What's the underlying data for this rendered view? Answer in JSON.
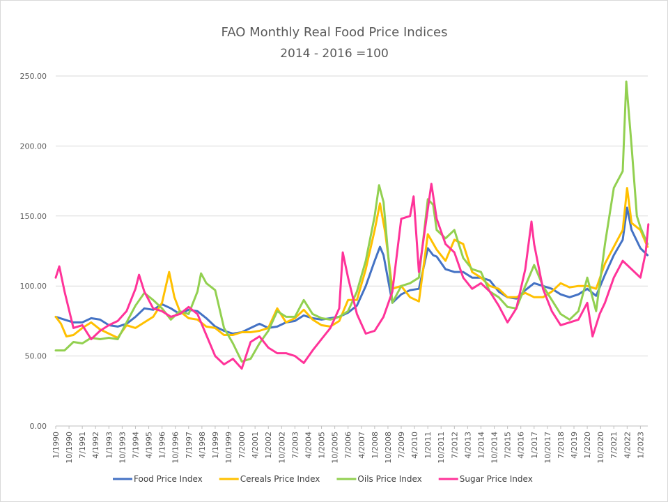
{
  "chart_data": {
    "type": "line",
    "title": "FAO Monthly Real Food Price Indices",
    "subtitle": "2014 - 2016 =100",
    "xlabel": "",
    "ylabel": "",
    "ylim": [
      0,
      250
    ],
    "y_ticks": [
      "0.00",
      "50.00",
      "100.00",
      "150.00",
      "200.00",
      "250.00"
    ],
    "x_tick_labels": [
      "1/1990",
      "10/1990",
      "7/1991",
      "4/1992",
      "1/1993",
      "10/1993",
      "7/1994",
      "4/1995",
      "1/1996",
      "10/1996",
      "7/1997",
      "4/1998",
      "1/1999",
      "10/1999",
      "7/2000",
      "4/2001",
      "1/2002",
      "10/2002",
      "7/2003",
      "4/2004",
      "1/2005",
      "10/2005",
      "7/2006",
      "4/2007",
      "1/2008",
      "10/2008",
      "7/2009",
      "4/2010",
      "1/2011",
      "10/2011",
      "7/2012",
      "4/2013",
      "1/2014",
      "10/2014",
      "7/2015",
      "4/2016",
      "1/2017",
      "10/2017",
      "7/2018",
      "4/2019",
      "1/2020",
      "10/2020",
      "7/2021",
      "4/2022",
      "1/2023"
    ],
    "x_start": "1/1990",
    "x_end": "6/2023",
    "grid": true,
    "legend_position": "bottom",
    "series": [
      {
        "name": "Food Price Index",
        "color": "#4472C4",
        "points": [
          [
            1990.0,
            78
          ],
          [
            1990.5,
            76
          ],
          [
            1991.0,
            74
          ],
          [
            1991.5,
            74
          ],
          [
            1992.0,
            77
          ],
          [
            1992.5,
            76
          ],
          [
            1993.0,
            72
          ],
          [
            1993.5,
            71
          ],
          [
            1994.0,
            73
          ],
          [
            1994.5,
            78
          ],
          [
            1995.0,
            84
          ],
          [
            1995.5,
            83
          ],
          [
            1996.0,
            87
          ],
          [
            1996.5,
            84
          ],
          [
            1997.0,
            80
          ],
          [
            1997.5,
            83
          ],
          [
            1998.0,
            82
          ],
          [
            1998.5,
            77
          ],
          [
            1999.0,
            71
          ],
          [
            1999.5,
            68
          ],
          [
            2000.0,
            66
          ],
          [
            2000.5,
            67
          ],
          [
            2001.0,
            70
          ],
          [
            2001.5,
            73
          ],
          [
            2002.0,
            70
          ],
          [
            2002.5,
            71
          ],
          [
            2003.0,
            74
          ],
          [
            2003.5,
            75
          ],
          [
            2004.0,
            79
          ],
          [
            2004.5,
            77
          ],
          [
            2005.0,
            76
          ],
          [
            2005.5,
            77
          ],
          [
            2006.0,
            78
          ],
          [
            2006.5,
            81
          ],
          [
            2007.0,
            86
          ],
          [
            2007.5,
            100
          ],
          [
            2008.0,
            118
          ],
          [
            2008.3,
            128
          ],
          [
            2008.5,
            122
          ],
          [
            2009.0,
            88
          ],
          [
            2009.5,
            94
          ],
          [
            2010.0,
            97
          ],
          [
            2010.5,
            98
          ],
          [
            2011.0,
            127
          ],
          [
            2011.3,
            122
          ],
          [
            2011.5,
            121
          ],
          [
            2012.0,
            112
          ],
          [
            2012.5,
            110
          ],
          [
            2013.0,
            110
          ],
          [
            2013.5,
            106
          ],
          [
            2014.0,
            106
          ],
          [
            2014.5,
            104
          ],
          [
            2015.0,
            96
          ],
          [
            2015.5,
            92
          ],
          [
            2016.0,
            91
          ],
          [
            2016.5,
            97
          ],
          [
            2017.0,
            102
          ],
          [
            2017.5,
            100
          ],
          [
            2018.0,
            98
          ],
          [
            2018.5,
            94
          ],
          [
            2019.0,
            92
          ],
          [
            2019.5,
            94
          ],
          [
            2020.0,
            98
          ],
          [
            2020.5,
            93
          ],
          [
            2021.0,
            108
          ],
          [
            2021.5,
            122
          ],
          [
            2022.0,
            133
          ],
          [
            2022.25,
            156
          ],
          [
            2022.5,
            140
          ],
          [
            2023.0,
            127
          ],
          [
            2023.4,
            122
          ]
        ]
      },
      {
        "name": "Cereals Price Index",
        "color": "#FFC000",
        "points": [
          [
            1990.0,
            78
          ],
          [
            1990.3,
            73
          ],
          [
            1990.6,
            64
          ],
          [
            1991.0,
            65
          ],
          [
            1991.5,
            70
          ],
          [
            1992.0,
            74
          ],
          [
            1992.5,
            69
          ],
          [
            1993.0,
            66
          ],
          [
            1993.5,
            63
          ],
          [
            1994.0,
            72
          ],
          [
            1994.5,
            70
          ],
          [
            1995.0,
            74
          ],
          [
            1995.5,
            78
          ],
          [
            1996.0,
            88
          ],
          [
            1996.4,
            110
          ],
          [
            1996.7,
            92
          ],
          [
            1997.0,
            82
          ],
          [
            1997.5,
            77
          ],
          [
            1998.0,
            76
          ],
          [
            1998.5,
            71
          ],
          [
            1999.0,
            70
          ],
          [
            1999.5,
            65
          ],
          [
            2000.0,
            65
          ],
          [
            2000.5,
            67
          ],
          [
            2001.0,
            67
          ],
          [
            2001.5,
            68
          ],
          [
            2002.0,
            70
          ],
          [
            2002.5,
            84
          ],
          [
            2002.8,
            78
          ],
          [
            2003.0,
            74
          ],
          [
            2003.5,
            77
          ],
          [
            2004.0,
            83
          ],
          [
            2004.5,
            76
          ],
          [
            2005.0,
            72
          ],
          [
            2005.5,
            71
          ],
          [
            2006.0,
            75
          ],
          [
            2006.5,
            90
          ],
          [
            2007.0,
            90
          ],
          [
            2007.5,
            112
          ],
          [
            2008.0,
            140
          ],
          [
            2008.3,
            159
          ],
          [
            2008.6,
            138
          ],
          [
            2009.0,
            98
          ],
          [
            2009.5,
            100
          ],
          [
            2010.0,
            92
          ],
          [
            2010.5,
            89
          ],
          [
            2011.0,
            137
          ],
          [
            2011.5,
            126
          ],
          [
            2012.0,
            118
          ],
          [
            2012.5,
            133
          ],
          [
            2013.0,
            130
          ],
          [
            2013.5,
            110
          ],
          [
            2014.0,
            106
          ],
          [
            2014.5,
            100
          ],
          [
            2015.0,
            98
          ],
          [
            2015.5,
            92
          ],
          [
            2016.0,
            92
          ],
          [
            2016.5,
            95
          ],
          [
            2017.0,
            92
          ],
          [
            2017.5,
            92
          ],
          [
            2018.0,
            96
          ],
          [
            2018.5,
            102
          ],
          [
            2019.0,
            99
          ],
          [
            2019.5,
            100
          ],
          [
            2020.0,
            100
          ],
          [
            2020.5,
            98
          ],
          [
            2021.0,
            116
          ],
          [
            2021.5,
            128
          ],
          [
            2022.0,
            140
          ],
          [
            2022.25,
            170
          ],
          [
            2022.5,
            145
          ],
          [
            2023.0,
            140
          ],
          [
            2023.4,
            128
          ]
        ]
      },
      {
        "name": "Oils Price Index",
        "color": "#92D050",
        "points": [
          [
            1990.0,
            54
          ],
          [
            1990.5,
            54
          ],
          [
            1991.0,
            60
          ],
          [
            1991.5,
            59
          ],
          [
            1992.0,
            63
          ],
          [
            1992.5,
            62
          ],
          [
            1993.0,
            63
          ],
          [
            1993.5,
            62
          ],
          [
            1994.0,
            74
          ],
          [
            1994.5,
            86
          ],
          [
            1995.0,
            95
          ],
          [
            1995.5,
            90
          ],
          [
            1996.0,
            84
          ],
          [
            1996.5,
            76
          ],
          [
            1997.0,
            82
          ],
          [
            1997.5,
            80
          ],
          [
            1998.0,
            96
          ],
          [
            1998.2,
            109
          ],
          [
            1998.5,
            102
          ],
          [
            1999.0,
            97
          ],
          [
            1999.5,
            70
          ],
          [
            2000.0,
            59
          ],
          [
            2000.5,
            46
          ],
          [
            2001.0,
            48
          ],
          [
            2001.5,
            59
          ],
          [
            2002.0,
            68
          ],
          [
            2002.5,
            82
          ],
          [
            2003.0,
            78
          ],
          [
            2003.5,
            78
          ],
          [
            2004.0,
            90
          ],
          [
            2004.5,
            80
          ],
          [
            2005.0,
            77
          ],
          [
            2005.5,
            76
          ],
          [
            2006.0,
            78
          ],
          [
            2006.5,
            82
          ],
          [
            2007.0,
            96
          ],
          [
            2007.5,
            118
          ],
          [
            2008.0,
            150
          ],
          [
            2008.25,
            172
          ],
          [
            2008.5,
            160
          ],
          [
            2009.0,
            88
          ],
          [
            2009.5,
            100
          ],
          [
            2010.0,
            102
          ],
          [
            2010.5,
            106
          ],
          [
            2011.0,
            162
          ],
          [
            2011.3,
            158
          ],
          [
            2011.5,
            140
          ],
          [
            2012.0,
            134
          ],
          [
            2012.5,
            140
          ],
          [
            2013.0,
            120
          ],
          [
            2013.5,
            112
          ],
          [
            2014.0,
            110
          ],
          [
            2014.5,
            96
          ],
          [
            2015.0,
            92
          ],
          [
            2015.5,
            85
          ],
          [
            2016.0,
            84
          ],
          [
            2016.5,
            100
          ],
          [
            2017.0,
            115
          ],
          [
            2017.5,
            100
          ],
          [
            2018.0,
            90
          ],
          [
            2018.5,
            80
          ],
          [
            2019.0,
            76
          ],
          [
            2019.5,
            82
          ],
          [
            2020.0,
            106
          ],
          [
            2020.5,
            82
          ],
          [
            2021.0,
            130
          ],
          [
            2021.5,
            170
          ],
          [
            2022.0,
            182
          ],
          [
            2022.2,
            246
          ],
          [
            2022.5,
            200
          ],
          [
            2022.8,
            150
          ],
          [
            2023.0,
            142
          ],
          [
            2023.4,
            130
          ]
        ]
      },
      {
        "name": "Sugar Price Index",
        "color": "#FF3399",
        "points": [
          [
            1990.0,
            106
          ],
          [
            1990.2,
            114
          ],
          [
            1990.5,
            96
          ],
          [
            1991.0,
            70
          ],
          [
            1991.5,
            72
          ],
          [
            1992.0,
            62
          ],
          [
            1992.5,
            68
          ],
          [
            1993.0,
            72
          ],
          [
            1993.5,
            75
          ],
          [
            1994.0,
            82
          ],
          [
            1994.5,
            98
          ],
          [
            1994.7,
            108
          ],
          [
            1995.0,
            96
          ],
          [
            1995.5,
            84
          ],
          [
            1996.0,
            82
          ],
          [
            1996.5,
            78
          ],
          [
            1997.0,
            80
          ],
          [
            1997.5,
            85
          ],
          [
            1998.0,
            80
          ],
          [
            1998.5,
            65
          ],
          [
            1999.0,
            50
          ],
          [
            1999.5,
            44
          ],
          [
            2000.0,
            48
          ],
          [
            2000.5,
            41
          ],
          [
            2001.0,
            60
          ],
          [
            2001.5,
            64
          ],
          [
            2002.0,
            56
          ],
          [
            2002.5,
            52
          ],
          [
            2003.0,
            52
          ],
          [
            2003.5,
            50
          ],
          [
            2004.0,
            45
          ],
          [
            2004.5,
            54
          ],
          [
            2005.0,
            62
          ],
          [
            2005.5,
            70
          ],
          [
            2006.0,
            84
          ],
          [
            2006.2,
            124
          ],
          [
            2006.5,
            106
          ],
          [
            2007.0,
            80
          ],
          [
            2007.5,
            66
          ],
          [
            2008.0,
            68
          ],
          [
            2008.5,
            78
          ],
          [
            2009.0,
            96
          ],
          [
            2009.5,
            148
          ],
          [
            2010.0,
            150
          ],
          [
            2010.2,
            164
          ],
          [
            2010.5,
            110
          ],
          [
            2011.0,
            155
          ],
          [
            2011.2,
            173
          ],
          [
            2011.5,
            148
          ],
          [
            2012.0,
            130
          ],
          [
            2012.5,
            124
          ],
          [
            2013.0,
            106
          ],
          [
            2013.5,
            98
          ],
          [
            2014.0,
            102
          ],
          [
            2014.5,
            96
          ],
          [
            2015.0,
            86
          ],
          [
            2015.5,
            74
          ],
          [
            2016.0,
            84
          ],
          [
            2016.5,
            112
          ],
          [
            2016.85,
            146
          ],
          [
            2017.0,
            130
          ],
          [
            2017.5,
            98
          ],
          [
            2018.0,
            82
          ],
          [
            2018.5,
            72
          ],
          [
            2019.0,
            74
          ],
          [
            2019.5,
            76
          ],
          [
            2020.0,
            88
          ],
          [
            2020.3,
            64
          ],
          [
            2020.7,
            80
          ],
          [
            2021.0,
            88
          ],
          [
            2021.5,
            106
          ],
          [
            2022.0,
            118
          ],
          [
            2022.5,
            112
          ],
          [
            2023.0,
            106
          ],
          [
            2023.3,
            124
          ],
          [
            2023.45,
            144
          ]
        ]
      }
    ]
  }
}
